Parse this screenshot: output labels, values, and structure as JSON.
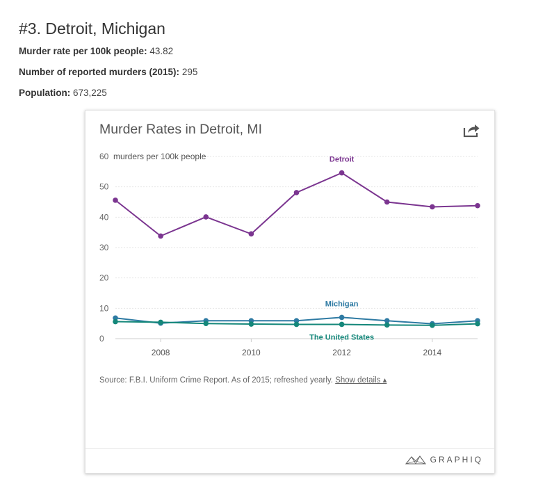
{
  "header": {
    "title": "#3. Detroit, Michigan",
    "stats": [
      {
        "label": "Murder rate per 100k people:",
        "value": "43.82"
      },
      {
        "label": "Number of reported murders (2015):",
        "value": "295"
      },
      {
        "label": "Population:",
        "value": "673,225"
      }
    ]
  },
  "card": {
    "title": "Murder Rates in Detroit, MI",
    "source_text": "Source: F.B.I. Uniform Crime Report. As of 2015; refreshed yearly.",
    "show_details": "Show details ▴",
    "brand": "GRAPHIQ"
  },
  "chart_data": {
    "type": "line",
    "title": "Murder Rates in Detroit, MI",
    "ylabel": "murders per 100k people",
    "xlabel": "",
    "x": [
      2007,
      2008,
      2009,
      2010,
      2011,
      2012,
      2013,
      2014,
      2015
    ],
    "xticks": [
      2008,
      2010,
      2012,
      2014
    ],
    "yticks": [
      0,
      10,
      20,
      30,
      40,
      50,
      60
    ],
    "ylim": [
      0,
      60
    ],
    "xlim": [
      2007,
      2015
    ],
    "grid": true,
    "series": [
      {
        "name": "Detroit",
        "color": "#7b3590",
        "values": [
          45.6,
          33.8,
          40.1,
          34.5,
          48.1,
          54.6,
          45.0,
          43.4,
          43.8
        ]
      },
      {
        "name": "Michigan",
        "color": "#2e7aa3",
        "values": [
          6.8,
          5.1,
          5.9,
          5.9,
          5.9,
          7.0,
          5.9,
          4.9,
          5.9
        ]
      },
      {
        "name": "The United States",
        "color": "#14877a",
        "values": [
          5.6,
          5.4,
          5.0,
          4.8,
          4.7,
          4.7,
          4.5,
          4.4,
          4.9
        ]
      }
    ],
    "annotations": [
      {
        "series": "Detroit",
        "at_x": 2012,
        "position": "above"
      },
      {
        "series": "Michigan",
        "at_x": 2012,
        "position": "above"
      },
      {
        "series": "The United States",
        "at_x": 2012,
        "position": "below"
      }
    ]
  }
}
